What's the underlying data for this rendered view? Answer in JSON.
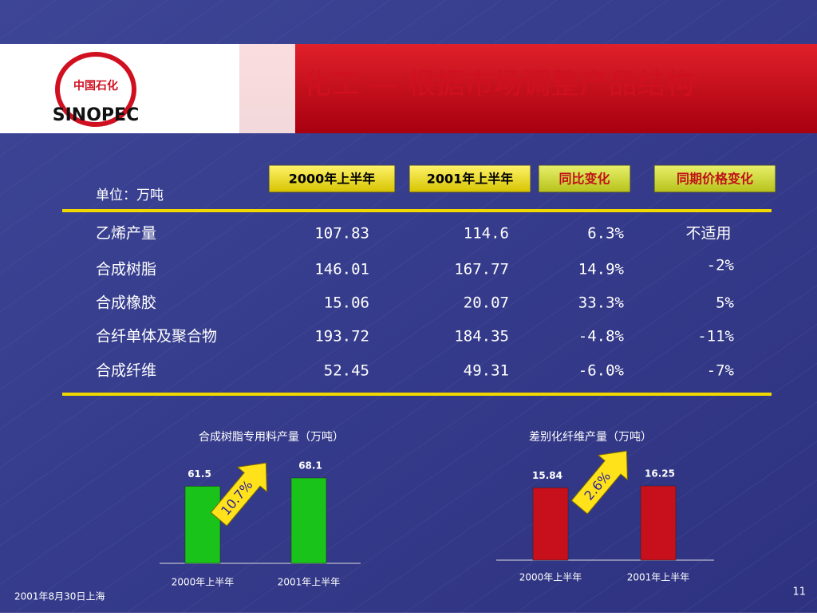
{
  "header": {
    "title": "化工 — 根据市场调整产品结构",
    "logo": "SINOPEC",
    "logo_cn": "中国石化"
  },
  "table": {
    "unit": "单位：万吨",
    "columns": [
      "2000年上半年",
      "2001年上半年",
      "同比变化",
      "同期价格变化"
    ],
    "rows": [
      [
        "乙烯产量",
        107.83,
        114.6,
        "6.3%",
        "不适用"
      ],
      [
        "合成树脂",
        146.01,
        167.77,
        "14.9%",
        "-2%"
      ],
      [
        "合成橡胶",
        15.06,
        20.07,
        "33.3%",
        "5%"
      ],
      [
        "合纤单体及聚合物",
        193.72,
        184.35,
        "-4.8%",
        "-11%"
      ],
      [
        "合成纤维",
        52.45,
        49.31,
        "-6.0%",
        "-7%"
      ]
    ]
  },
  "charts": [
    {
      "type": "bar",
      "title": "合成树脂专用料产量（万吨）",
      "categories": [
        "2000年上半年",
        "2001年上半年"
      ],
      "values": [
        61.5,
        68.1
      ],
      "color": "#19c319",
      "growth": "10.7%"
    },
    {
      "type": "bar",
      "title": "差别化纤维产量（万吨）",
      "categories": [
        "2000年上半年",
        "2001年上半年"
      ],
      "values": [
        15.84,
        16.25
      ],
      "color": "#c8101c",
      "growth": "2.6%"
    }
  ],
  "footer": {
    "date": "2001年8月30日上海",
    "page": "11"
  }
}
